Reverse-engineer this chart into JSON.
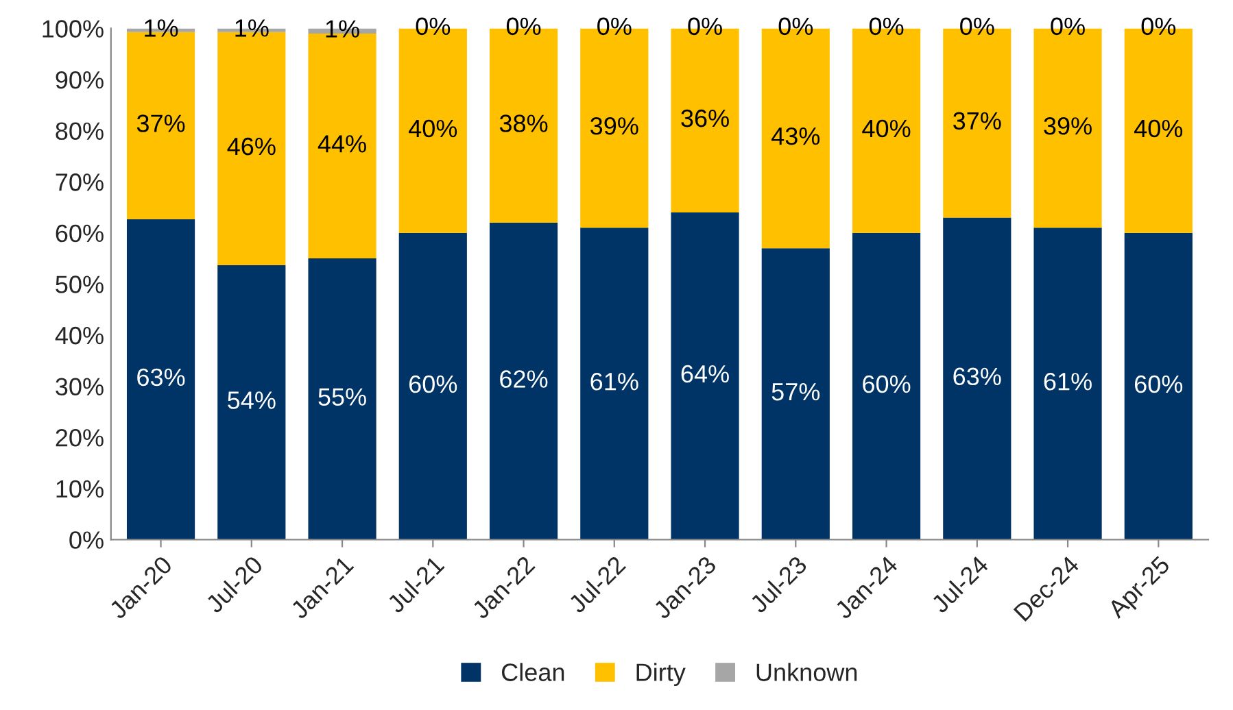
{
  "chart_data": {
    "type": "bar",
    "stacked": true,
    "categories": [
      "Jan-20",
      "Jul-20",
      "Jan-21",
      "Jul-21",
      "Jan-22",
      "Jul-22",
      "Jan-23",
      "Jul-23",
      "Jan-24",
      "Jul-24",
      "Dec-24",
      "Apr-25"
    ],
    "series": [
      {
        "name": "Clean",
        "color": "#003366",
        "values": [
          62.7,
          53.7,
          55,
          60,
          62,
          61,
          64,
          57,
          60,
          63,
          61,
          60
        ],
        "value_labels": [
          "63%",
          "54%",
          "55%",
          "60%",
          "62%",
          "61%",
          "64%",
          "57%",
          "60%",
          "63%",
          "61%",
          "60%"
        ]
      },
      {
        "name": "Dirty",
        "color": "#ffc000",
        "values": [
          36.6,
          45.6,
          44,
          40,
          38,
          39,
          36,
          43,
          40,
          37,
          39,
          40
        ],
        "value_labels": [
          "37%",
          "46%",
          "44%",
          "40%",
          "38%",
          "39%",
          "36%",
          "43%",
          "40%",
          "37%",
          "39%",
          "40%"
        ]
      },
      {
        "name": "Unknown",
        "color": "#a6a6a6",
        "values": [
          0.7,
          0.7,
          1,
          0,
          0,
          0,
          0,
          0,
          0,
          0,
          0,
          0
        ],
        "value_labels": [
          "1%",
          "1%",
          "1%",
          "0%",
          "0%",
          "0%",
          "0%",
          "0%",
          "0%",
          "0%",
          "0%",
          "0%"
        ]
      }
    ],
    "ylim": [
      0,
      100
    ],
    "yticks": [
      {
        "value": 0,
        "label": "0%"
      },
      {
        "value": 10,
        "label": "10%"
      },
      {
        "value": 20,
        "label": "20%"
      },
      {
        "value": 30,
        "label": "30%"
      },
      {
        "value": 40,
        "label": "40%"
      },
      {
        "value": 50,
        "label": "50%"
      },
      {
        "value": 60,
        "label": "60%"
      },
      {
        "value": 70,
        "label": "70%"
      },
      {
        "value": 80,
        "label": "80%"
      },
      {
        "value": 90,
        "label": "90%"
      },
      {
        "value": 100,
        "label": "100%"
      }
    ],
    "legend": "bottom"
  }
}
